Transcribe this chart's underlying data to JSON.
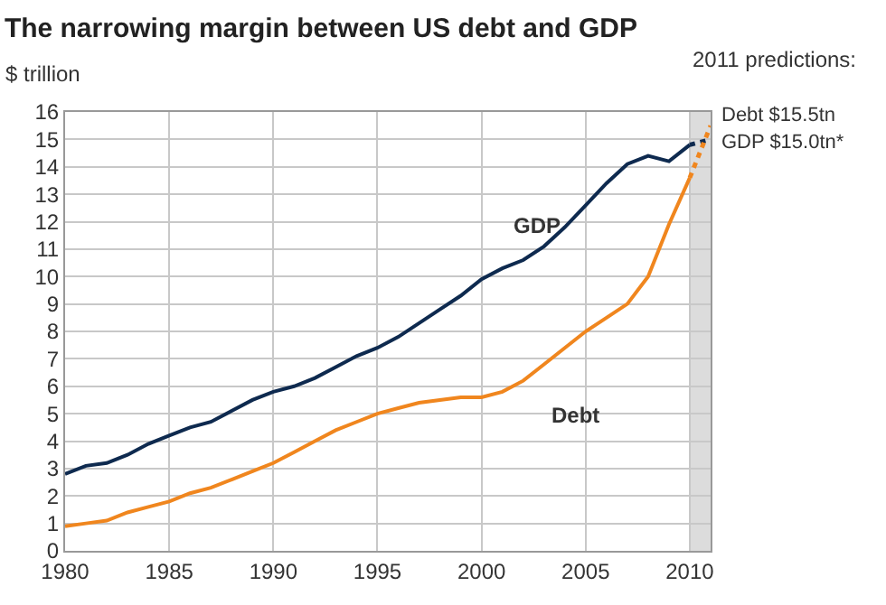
{
  "chart_data": {
    "type": "line",
    "title": "The narrowing margin between US debt and GDP",
    "ylabel": "$ trillion",
    "x": [
      1980,
      1981,
      1982,
      1983,
      1984,
      1985,
      1986,
      1987,
      1988,
      1989,
      1990,
      1991,
      1992,
      1993,
      1994,
      1995,
      1996,
      1997,
      1998,
      1999,
      2000,
      2001,
      2002,
      2003,
      2004,
      2005,
      2006,
      2007,
      2008,
      2009,
      2010,
      2011
    ],
    "series": [
      {
        "color": "#0e2a4f",
        "line_style": "solid",
        "values": [
          2.8,
          3.1,
          3.2,
          3.5,
          3.9,
          4.2,
          4.5,
          4.7,
          5.1,
          5.5,
          5.8,
          6.0,
          6.3,
          6.7,
          7.1,
          7.4,
          7.8,
          8.3,
          8.8,
          9.3,
          9.9,
          10.3,
          10.6,
          11.1,
          11.8,
          12.6,
          13.4,
          14.1,
          14.4,
          14.2,
          14.8,
          null
        ]
      },
      {
        "color": "#f0861e",
        "line_style": "solid",
        "values": [
          0.9,
          1.0,
          1.1,
          1.4,
          1.6,
          1.8,
          2.1,
          2.3,
          2.6,
          2.9,
          3.2,
          3.6,
          4.0,
          4.4,
          4.7,
          5.0,
          5.2,
          5.4,
          5.5,
          5.6,
          5.6,
          5.8,
          6.2,
          6.8,
          7.4,
          8.0,
          8.5,
          9.0,
          10.0,
          11.9,
          13.6,
          null
        ]
      },
      {
        "color": "#0e2a4f",
        "line_style": "dotted",
        "values": [
          null,
          null,
          null,
          null,
          null,
          null,
          null,
          null,
          null,
          null,
          null,
          null,
          null,
          null,
          null,
          null,
          null,
          null,
          null,
          null,
          null,
          null,
          null,
          null,
          null,
          null,
          null,
          null,
          null,
          null,
          14.8,
          15.0
        ]
      },
      {
        "color": "#f0861e",
        "line_style": "dotted",
        "values": [
          null,
          null,
          null,
          null,
          null,
          null,
          null,
          null,
          null,
          null,
          null,
          null,
          null,
          null,
          null,
          null,
          null,
          null,
          null,
          null,
          null,
          null,
          null,
          null,
          null,
          null,
          null,
          null,
          null,
          null,
          13.6,
          15.5
        ]
      }
    ],
    "xlim": [
      1980,
      2011
    ],
    "xticks": [
      1980,
      1985,
      1990,
      1995,
      2000,
      2005,
      2010
    ],
    "ylim": [
      0,
      16
    ],
    "yticks": [
      0,
      1,
      2,
      3,
      4,
      5,
      6,
      7,
      8,
      9,
      10,
      11,
      12,
      13,
      14,
      15,
      16
    ],
    "grid": true,
    "bands": [
      {
        "axis": "x",
        "from": 2010,
        "to": 2011,
        "color": "#dcdcdc"
      }
    ],
    "annotations": [
      "GDP",
      "Debt",
      "2011 predictions:",
      {
        "text": "Debt $15.5tn",
        "x": 2011,
        "y": 15.5
      },
      {
        "text": "GDP $15.0tn*",
        "x": 2011,
        "y": 15.0
      }
    ]
  }
}
